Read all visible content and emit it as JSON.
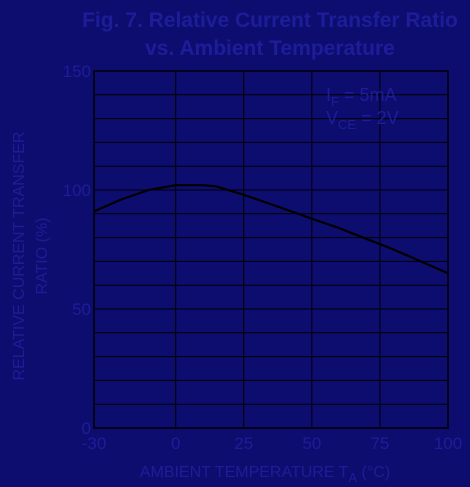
{
  "colors": {
    "background": "#0d0d70",
    "grid": "#000000",
    "curve": "#000000",
    "text": "#1d1d9a"
  },
  "chart_data": {
    "type": "line",
    "title_line1": "Fig. 7. Relative Current Transfer Ratio",
    "title_line2": "vs. Ambient Temperature",
    "xlabel_main": "AMBIENT TEMPERATURE T",
    "xlabel_sub": "A",
    "xlabel_unit": " (°C)",
    "ylabel_line1": "RELATIVE CURRENT TRANSFER",
    "ylabel_line2": "RATIO (%)",
    "xlim": [
      -30,
      100
    ],
    "ylim": [
      0,
      150
    ],
    "x_ticks": [
      -30,
      0,
      25,
      50,
      75,
      100
    ],
    "y_ticks": [
      0,
      50,
      100,
      150
    ],
    "x_grid_step": 25,
    "y_grid_step": 10,
    "grid": true,
    "annotations": [
      {
        "main": "I",
        "sub": "F",
        "rest": " = 5mA"
      },
      {
        "main": "V",
        "sub": "CE",
        "rest": " = 2V"
      }
    ],
    "series": [
      {
        "x": [
          -30,
          -20,
          -10,
          0,
          5,
          10,
          15,
          25,
          40,
          50,
          60,
          70,
          80,
          90,
          100
        ],
        "y": [
          91,
          96,
          100,
          102,
          102,
          102,
          101.5,
          98,
          92,
          88,
          84,
          79.5,
          75,
          70,
          65
        ]
      }
    ]
  }
}
